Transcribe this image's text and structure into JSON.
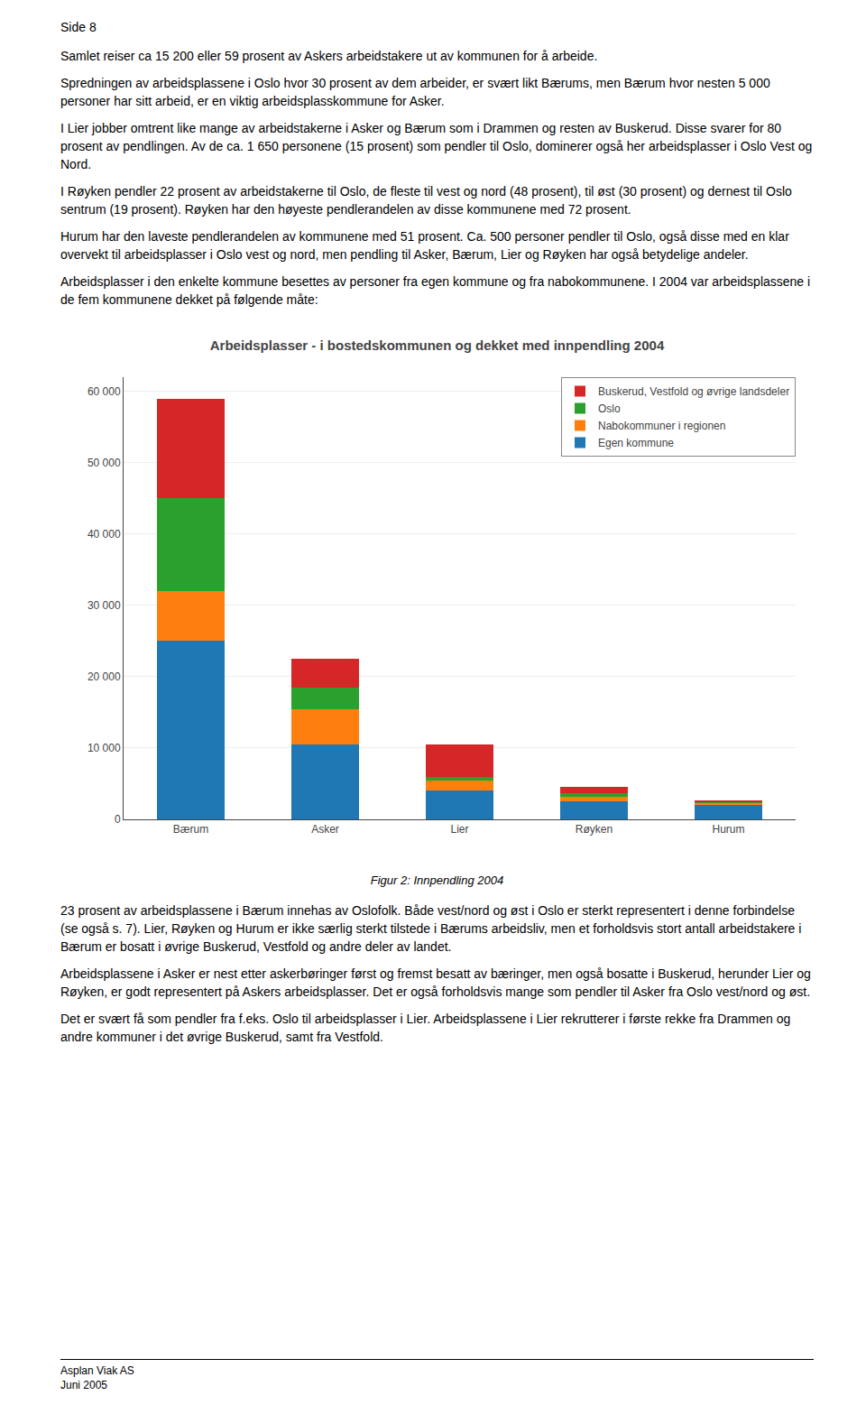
{
  "header": "Side 8",
  "text_before": [
    "Samlet reiser ca 15 200 eller 59 prosent av Askers arbeidstakere ut av kommunen for å arbeide.",
    "Spredningen av arbeidsplassene i Oslo hvor 30 prosent av dem arbeider, er svært likt Bærums, men Bærum hvor nesten 5 000 personer har sitt arbeid, er en viktig arbeidsplasskommune for Asker.",
    "I Lier jobber omtrent like mange av arbeidstakerne i Asker og Bærum som i Drammen og resten av Buskerud. Disse svarer for 80 prosent av pendlingen. Av de ca. 1 650 personene (15 prosent) som pendler til Oslo, dominerer også her arbeidsplasser i Oslo Vest og Nord.",
    "I Røyken pendler 22 prosent av arbeidstakerne til Oslo, de fleste til vest og nord (48 prosent), til øst (30 prosent) og dernest til Oslo sentrum (19 prosent). Røyken har den høyeste pendlerandelen av disse kommunene med 72 prosent.",
    "Hurum har den laveste pendlerandelen av kommunene med 51 prosent. Ca. 500 personer pendler til Oslo, også disse med en klar overvekt til arbeidsplasser i Oslo vest og nord, men pendling til Asker, Bærum, Lier og Røyken har også betydelige andeler.",
    "Arbeidsplasser i den enkelte kommune besettes av personer fra egen kommune og fra nabokommunene. I 2004 var arbeidsplassene i de fem kommunene dekket på følgende måte:"
  ],
  "chart_data": {
    "type": "bar",
    "title": "Arbeidsplasser - i bostedskommunen og dekket med innpendling 2004",
    "categories": [
      "Bærum",
      "Asker",
      "Lier",
      "Røyken",
      "Hurum"
    ],
    "stacked": true,
    "series": [
      {
        "name": "Egen kommune",
        "values": [
          25000,
          10500,
          4000,
          2500,
          2000
        ]
      },
      {
        "name": "Nabokommuner i regionen",
        "values": [
          7000,
          5000,
          1500,
          700,
          350
        ]
      },
      {
        "name": "Oslo",
        "values": [
          13000,
          3000,
          500,
          500,
          150
        ]
      },
      {
        "name": "Buskerud, Vestfold og øvrige landsdeler",
        "values": [
          14000,
          4000,
          4500,
          800,
          100
        ]
      }
    ],
    "ylim": [
      0,
      62000
    ],
    "yticks": [
      0,
      {
        "value": 10000,
        "label": "10 000"
      },
      {
        "value": 20000,
        "label": "20 000"
      },
      {
        "value": 30000,
        "label": "30 000"
      },
      {
        "value": 40000,
        "label": "40 000"
      },
      {
        "value": 50000,
        "label": "50 000"
      },
      {
        "value": 60000,
        "label": "60 000"
      }
    ],
    "grid": true,
    "legend": "upper right"
  },
  "caption": "Figur 2: Innpendling 2004",
  "text_after": [
    "23 prosent av arbeidsplassene i Bærum innehas av Oslofolk. Både vest/nord og øst i Oslo er sterkt representert i denne forbindelse (se også s. 7). Lier, Røyken og Hurum er ikke særlig sterkt tilstede i Bærums arbeidsliv, men et forholdsvis stort antall arbeidstakere i Bærum er bosatt i øvrige Buskerud, Vestfold og andre deler av landet.",
    "Arbeidsplassene i Asker er nest etter askerbøringer først og fremst besatt av bæringer, men også bosatte i Buskerud, herunder Lier og Røyken, er godt representert på Askers arbeidsplasser. Det er også forholdsvis mange som pendler til Asker fra Oslo vest/nord og øst.",
    "Det er svært få som pendler fra f.eks. Oslo til arbeidsplasser i Lier. Arbeidsplassene i Lier rekrutterer i første rekke fra Drammen og andre kommuner i det øvrige Buskerud, samt fra Vestfold."
  ],
  "footer": [
    "Asplan Viak AS",
    "Juni 2005"
  ]
}
